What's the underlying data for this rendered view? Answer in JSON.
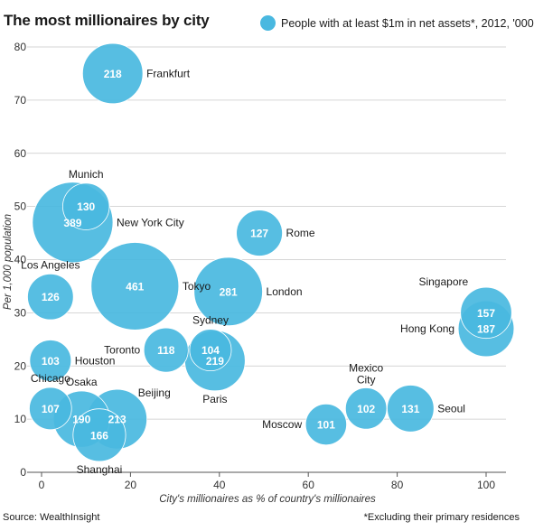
{
  "title": "The most millionaires by city",
  "legend": "People with at least $1m in net assets*, 2012, '000",
  "source": "Source: WealthInsight",
  "footnote": "*Excluding their primary residences",
  "colors": {
    "bubble": "#49b8e0",
    "grid": "#c8c8c8"
  },
  "chart_data": {
    "type": "scatter",
    "title": "The most millionaires by city",
    "xlabel": "City's millionaires as % of country's millionaires",
    "ylabel": "Per 1,000 population",
    "xlim": [
      0,
      100
    ],
    "ylim": [
      0,
      80
    ],
    "xticks": [
      "0",
      "20",
      "40",
      "60",
      "80",
      "100"
    ],
    "yticks": [
      "0",
      "10",
      "20",
      "30",
      "40",
      "50",
      "60",
      "70",
      "80"
    ],
    "grid": "horizontal",
    "size_label": "People with at least $1m in net assets*, 2012, '000",
    "points": [
      {
        "city": "Frankfurt",
        "x": 16,
        "y": 75,
        "value": 218
      },
      {
        "city": "New York City",
        "x": 7,
        "y": 47,
        "value": 389
      },
      {
        "city": "Munich",
        "x": 10,
        "y": 50,
        "value": 130
      },
      {
        "city": "Rome",
        "x": 49,
        "y": 45,
        "value": 127
      },
      {
        "city": "Tokyo",
        "x": 21,
        "y": 35,
        "value": 461
      },
      {
        "city": "London",
        "x": 42,
        "y": 34,
        "value": 281
      },
      {
        "city": "Los Angeles",
        "x": 2,
        "y": 33,
        "value": 126
      },
      {
        "city": "Singapore",
        "x": 100,
        "y": 30,
        "value": 157
      },
      {
        "city": "Hong Kong",
        "x": 100,
        "y": 27,
        "value": 187
      },
      {
        "city": "Toronto",
        "x": 28,
        "y": 23,
        "value": 118
      },
      {
        "city": "Sydney",
        "x": 38,
        "y": 23,
        "value": 104
      },
      {
        "city": "Paris",
        "x": 39,
        "y": 21,
        "value": 219
      },
      {
        "city": "Houston",
        "x": 2,
        "y": 21,
        "value": 103
      },
      {
        "city": "Chicago",
        "x": 2,
        "y": 12,
        "value": 107
      },
      {
        "city": "Osaka",
        "x": 9,
        "y": 10,
        "value": 190
      },
      {
        "city": "Beijing",
        "x": 17,
        "y": 10,
        "value": 213
      },
      {
        "city": "Shanghai",
        "x": 13,
        "y": 7,
        "value": 166
      },
      {
        "city": "Mexico City",
        "x": 73,
        "y": 12,
        "value": 102
      },
      {
        "city": "Seoul",
        "x": 83,
        "y": 12,
        "value": 131
      },
      {
        "city": "Moscow",
        "x": 64,
        "y": 9,
        "value": 101
      }
    ]
  }
}
